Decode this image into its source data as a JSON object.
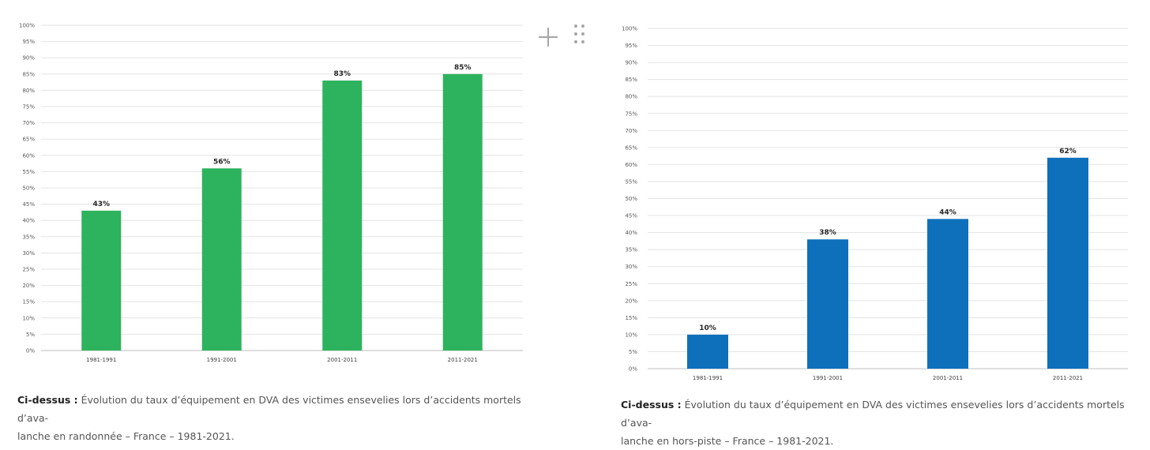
{
  "chart_data": [
    {
      "type": "bar",
      "categories": [
        "1981-1991",
        "1991-2001",
        "2001-2011",
        "2011-2021"
      ],
      "values": [
        43,
        56,
        83,
        85
      ],
      "data_labels": [
        "43%",
        "56%",
        "83%",
        "85%"
      ],
      "ylim": [
        0,
        100
      ],
      "ytick_step": 5,
      "ytick_suffix": "%",
      "bar_color": "#2db35d",
      "grid": true,
      "legend": "none"
    },
    {
      "type": "bar",
      "categories": [
        "1981-1991",
        "1991-2001",
        "2001-2011",
        "2011-2021"
      ],
      "values": [
        10,
        38,
        44,
        62
      ],
      "data_labels": [
        "10%",
        "38%",
        "44%",
        "62%"
      ],
      "ylim": [
        0,
        100
      ],
      "ytick_step": 5,
      "ytick_suffix": "%",
      "bar_color": "#0e70bb",
      "grid": true,
      "legend": "none"
    }
  ],
  "captions": [
    {
      "lead": "Ci-dessus :",
      "line1": " Évolution du taux d’équipement en DVA des victimes ensevelies lors d’accidents mortels d’ava-",
      "line2": "lanche en randonnée – France – 1981-2021."
    },
    {
      "lead": "Ci-dessus :",
      "line1": " Évolution du taux d’équipement en DVA des victimes ensevelies lors d’accidents mortels d’ava-",
      "line2": "lanche en hors-piste – France – 1981-2021."
    }
  ],
  "controls": {
    "add_icon": "plus-icon",
    "drag_icon": "drag-handle-icon"
  }
}
